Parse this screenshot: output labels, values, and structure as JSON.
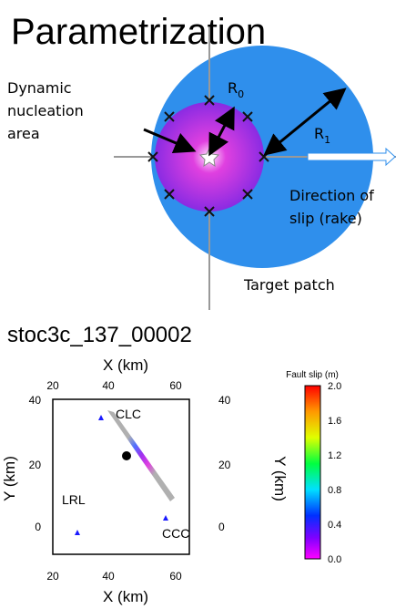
{
  "header": {
    "title": "Parametrization"
  },
  "diagram": {
    "nucleation_label": [
      "Dynamic",
      "nucleation",
      "area"
    ],
    "r0": {
      "symbol": "R",
      "subscript": "0"
    },
    "r1": {
      "symbol": "R",
      "subscript": "1"
    },
    "direction_label": [
      "Direction of",
      "slip (rake)"
    ],
    "target_label": "Target patch"
  },
  "map": {
    "title": "stoc3c_137_00002",
    "x_label": "X (km)",
    "y_label": "Y (km)",
    "x_ticks": [
      20,
      40,
      60
    ],
    "y_ticks": [
      40,
      20,
      0
    ],
    "stations": [
      "CLC",
      "LRL",
      "CCC"
    ],
    "colorbar_title": "Fault slip (m)",
    "colorbar_ticks": [
      "2.0",
      "1.6",
      "1.2",
      "0.8",
      "0.4",
      "0.0"
    ]
  }
}
